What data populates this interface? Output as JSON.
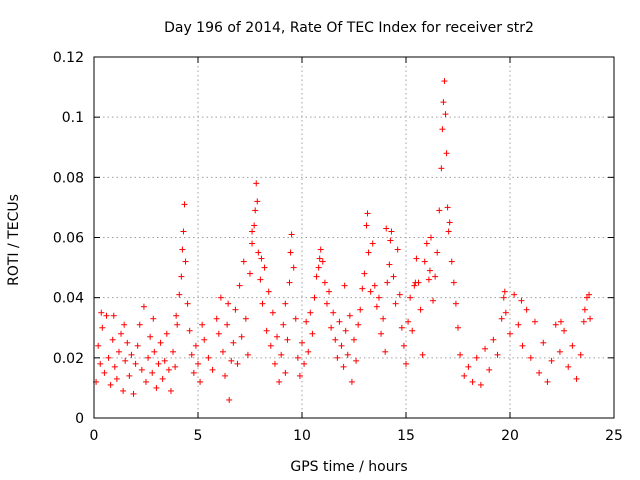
{
  "chart_data": {
    "type": "scatter",
    "title": "Day 196 of 2014, Rate Of TEC Index for receiver str2",
    "xlabel": "GPS time / hours",
    "ylabel": "ROTI / TECUs",
    "xlim": [
      0,
      25
    ],
    "ylim": [
      0,
      0.12
    ],
    "xticks": [
      0,
      5,
      10,
      15,
      20,
      25
    ],
    "xtick_labels": [
      "0",
      "5",
      "10",
      "15",
      "20",
      "25"
    ],
    "yticks": [
      0,
      0.02,
      0.04,
      0.06,
      0.08,
      0.1,
      0.12
    ],
    "ytick_labels": [
      "0",
      "0.02",
      "0.04",
      "0.06",
      "0.08",
      "0.1",
      "0.12"
    ],
    "grid": true,
    "marker": "+",
    "color": "#ff0000",
    "series": [
      {
        "name": "ROTI",
        "points": [
          [
            0.1,
            0.012
          ],
          [
            0.2,
            0.024
          ],
          [
            0.3,
            0.018
          ],
          [
            0.4,
            0.03
          ],
          [
            0.5,
            0.015
          ],
          [
            0.6,
            0.034
          ],
          [
            0.7,
            0.02
          ],
          [
            0.8,
            0.011
          ],
          [
            0.9,
            0.026
          ],
          [
            1.0,
            0.017
          ],
          [
            1.1,
            0.013
          ],
          [
            1.2,
            0.022
          ],
          [
            1.3,
            0.028
          ],
          [
            1.4,
            0.009
          ],
          [
            1.5,
            0.019
          ],
          [
            1.6,
            0.025
          ],
          [
            1.7,
            0.014
          ],
          [
            1.8,
            0.021
          ],
          [
            1.9,
            0.008
          ],
          [
            2.0,
            0.018
          ],
          [
            2.1,
            0.024
          ],
          [
            2.2,
            0.031
          ],
          [
            2.3,
            0.016
          ],
          [
            2.4,
            0.037
          ],
          [
            2.5,
            0.012
          ],
          [
            2.6,
            0.02
          ],
          [
            2.7,
            0.027
          ],
          [
            2.8,
            0.015
          ],
          [
            2.9,
            0.022
          ],
          [
            3.0,
            0.01
          ],
          [
            3.1,
            0.018
          ],
          [
            3.2,
            0.025
          ],
          [
            3.3,
            0.013
          ],
          [
            3.4,
            0.019
          ],
          [
            3.5,
            0.028
          ],
          [
            3.6,
            0.016
          ],
          [
            3.7,
            0.009
          ],
          [
            3.8,
            0.022
          ],
          [
            3.9,
            0.017
          ],
          [
            4.0,
            0.031
          ],
          [
            4.1,
            0.041
          ],
          [
            4.2,
            0.047
          ],
          [
            4.25,
            0.056
          ],
          [
            4.3,
            0.062
          ],
          [
            4.35,
            0.071
          ],
          [
            4.4,
            0.052
          ],
          [
            4.5,
            0.038
          ],
          [
            4.6,
            0.029
          ],
          [
            4.7,
            0.021
          ],
          [
            4.8,
            0.015
          ],
          [
            4.9,
            0.024
          ],
          [
            5.0,
            0.018
          ],
          [
            5.1,
            0.012
          ],
          [
            5.3,
            0.026
          ],
          [
            5.5,
            0.02
          ],
          [
            5.7,
            0.016
          ],
          [
            5.9,
            0.033
          ],
          [
            6.0,
            0.028
          ],
          [
            6.1,
            0.04
          ],
          [
            6.2,
            0.022
          ],
          [
            6.3,
            0.014
          ],
          [
            6.4,
            0.031
          ],
          [
            6.5,
            0.006
          ],
          [
            6.6,
            0.019
          ],
          [
            6.7,
            0.025
          ],
          [
            6.8,
            0.036
          ],
          [
            6.9,
            0.018
          ],
          [
            7.0,
            0.044
          ],
          [
            7.1,
            0.027
          ],
          [
            7.2,
            0.052
          ],
          [
            7.3,
            0.033
          ],
          [
            7.4,
            0.021
          ],
          [
            7.5,
            0.048
          ],
          [
            7.6,
            0.058
          ],
          [
            7.7,
            0.064
          ],
          [
            7.75,
            0.069
          ],
          [
            7.8,
            0.078
          ],
          [
            7.85,
            0.072
          ],
          [
            7.9,
            0.055
          ],
          [
            8.0,
            0.046
          ],
          [
            8.1,
            0.038
          ],
          [
            8.2,
            0.05
          ],
          [
            8.3,
            0.029
          ],
          [
            8.4,
            0.042
          ],
          [
            8.5,
            0.024
          ],
          [
            8.6,
            0.035
          ],
          [
            8.7,
            0.018
          ],
          [
            8.8,
            0.027
          ],
          [
            8.9,
            0.012
          ],
          [
            9.0,
            0.021
          ],
          [
            9.1,
            0.031
          ],
          [
            9.2,
            0.015
          ],
          [
            9.3,
            0.026
          ],
          [
            9.4,
            0.045
          ],
          [
            9.45,
            0.055
          ],
          [
            9.5,
            0.061
          ],
          [
            9.6,
            0.05
          ],
          [
            9.7,
            0.033
          ],
          [
            9.8,
            0.02
          ],
          [
            9.9,
            0.014
          ],
          [
            10.0,
            0.025
          ],
          [
            10.1,
            0.018
          ],
          [
            10.2,
            0.032
          ],
          [
            10.3,
            0.022
          ],
          [
            10.4,
            0.035
          ],
          [
            10.5,
            0.028
          ],
          [
            10.6,
            0.04
          ],
          [
            10.7,
            0.047
          ],
          [
            10.8,
            0.05
          ],
          [
            10.9,
            0.056
          ],
          [
            11.0,
            0.052
          ],
          [
            11.1,
            0.045
          ],
          [
            11.2,
            0.038
          ],
          [
            11.3,
            0.042
          ],
          [
            11.4,
            0.03
          ],
          [
            11.5,
            0.035
          ],
          [
            11.6,
            0.026
          ],
          [
            11.7,
            0.02
          ],
          [
            11.8,
            0.032
          ],
          [
            11.9,
            0.024
          ],
          [
            12.0,
            0.017
          ],
          [
            12.1,
            0.029
          ],
          [
            12.2,
            0.021
          ],
          [
            12.3,
            0.034
          ],
          [
            12.4,
            0.012
          ],
          [
            12.5,
            0.026
          ],
          [
            12.6,
            0.019
          ],
          [
            12.7,
            0.031
          ],
          [
            12.8,
            0.036
          ],
          [
            12.9,
            0.043
          ],
          [
            13.0,
            0.048
          ],
          [
            13.1,
            0.064
          ],
          [
            13.15,
            0.068
          ],
          [
            13.2,
            0.055
          ],
          [
            13.3,
            0.042
          ],
          [
            13.4,
            0.058
          ],
          [
            13.5,
            0.044
          ],
          [
            13.6,
            0.037
          ],
          [
            13.7,
            0.04
          ],
          [
            13.8,
            0.028
          ],
          [
            13.9,
            0.033
          ],
          [
            14.0,
            0.022
          ],
          [
            14.1,
            0.045
          ],
          [
            14.2,
            0.051
          ],
          [
            14.25,
            0.059
          ],
          [
            14.3,
            0.062
          ],
          [
            14.4,
            0.047
          ],
          [
            14.5,
            0.038
          ],
          [
            14.6,
            0.056
          ],
          [
            14.7,
            0.041
          ],
          [
            14.8,
            0.03
          ],
          [
            14.9,
            0.024
          ],
          [
            15.0,
            0.018
          ],
          [
            15.1,
            0.032
          ],
          [
            15.2,
            0.04
          ],
          [
            15.3,
            0.029
          ],
          [
            15.4,
            0.044
          ],
          [
            15.5,
            0.053
          ],
          [
            15.6,
            0.045
          ],
          [
            15.7,
            0.036
          ],
          [
            15.8,
            0.021
          ],
          [
            15.9,
            0.052
          ],
          [
            16.0,
            0.058
          ],
          [
            16.1,
            0.046
          ],
          [
            16.2,
            0.06
          ],
          [
            16.3,
            0.039
          ],
          [
            16.4,
            0.047
          ],
          [
            16.5,
            0.055
          ],
          [
            16.6,
            0.069
          ],
          [
            16.7,
            0.083
          ],
          [
            16.75,
            0.096
          ],
          [
            16.8,
            0.105
          ],
          [
            16.85,
            0.112
          ],
          [
            16.9,
            0.101
          ],
          [
            16.95,
            0.088
          ],
          [
            17.0,
            0.07
          ],
          [
            17.1,
            0.065
          ],
          [
            17.2,
            0.052
          ],
          [
            17.3,
            0.045
          ],
          [
            17.4,
            0.038
          ],
          [
            17.5,
            0.03
          ],
          [
            17.6,
            0.021
          ],
          [
            17.8,
            0.014
          ],
          [
            18.0,
            0.017
          ],
          [
            18.2,
            0.012
          ],
          [
            18.4,
            0.02
          ],
          [
            18.6,
            0.011
          ],
          [
            18.8,
            0.023
          ],
          [
            19.0,
            0.016
          ],
          [
            19.2,
            0.026
          ],
          [
            19.4,
            0.021
          ],
          [
            19.6,
            0.033
          ],
          [
            19.7,
            0.04
          ],
          [
            19.8,
            0.035
          ],
          [
            20.0,
            0.028
          ],
          [
            20.2,
            0.041
          ],
          [
            20.4,
            0.031
          ],
          [
            20.6,
            0.024
          ],
          [
            20.8,
            0.036
          ],
          [
            21.0,
            0.02
          ],
          [
            21.2,
            0.032
          ],
          [
            21.4,
            0.015
          ],
          [
            21.6,
            0.025
          ],
          [
            21.8,
            0.012
          ],
          [
            22.0,
            0.019
          ],
          [
            22.2,
            0.031
          ],
          [
            22.4,
            0.022
          ],
          [
            22.6,
            0.029
          ],
          [
            22.8,
            0.017
          ],
          [
            23.0,
            0.024
          ],
          [
            23.2,
            0.013
          ],
          [
            23.4,
            0.021
          ],
          [
            23.6,
            0.036
          ],
          [
            23.7,
            0.04
          ],
          [
            23.8,
            0.041
          ],
          [
            23.85,
            0.033
          ],
          [
            0.35,
            0.035
          ],
          [
            0.95,
            0.034
          ],
          [
            1.45,
            0.031
          ],
          [
            2.85,
            0.033
          ],
          [
            3.95,
            0.034
          ],
          [
            5.2,
            0.031
          ],
          [
            6.45,
            0.038
          ],
          [
            9.2,
            0.038
          ],
          [
            12.05,
            0.044
          ],
          [
            14.05,
            0.063
          ],
          [
            15.45,
            0.045
          ],
          [
            17.05,
            0.062
          ],
          [
            19.75,
            0.042
          ],
          [
            20.55,
            0.039
          ],
          [
            22.45,
            0.032
          ],
          [
            23.55,
            0.032
          ],
          [
            7.6,
            0.062
          ],
          [
            8.05,
            0.053
          ],
          [
            10.85,
            0.053
          ],
          [
            16.15,
            0.049
          ]
        ]
      }
    ]
  }
}
